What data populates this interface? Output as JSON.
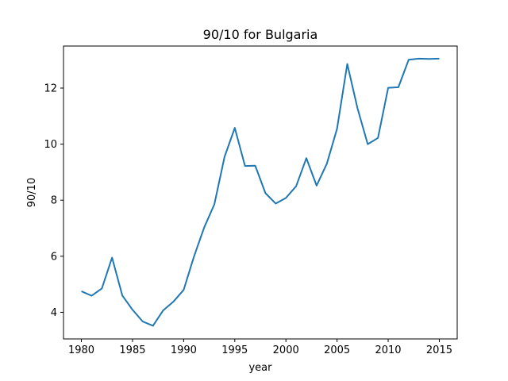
{
  "chart_data": {
    "type": "line",
    "title": "90/10 for Bulgaria",
    "xlabel": "year",
    "ylabel": "90/10",
    "xlim": [
      1978.25,
      2016.75
    ],
    "ylim": [
      3.05,
      13.5
    ],
    "xticks": [
      1980,
      1985,
      1990,
      1995,
      2000,
      2005,
      2010,
      2015
    ],
    "yticks": [
      4,
      6,
      8,
      10,
      12
    ],
    "grid": false,
    "line_color": "#1f77b4",
    "series": [
      {
        "x": [
          1980,
          1981,
          1982,
          1983,
          1984,
          1985,
          1986,
          1987,
          1988,
          1989,
          1990,
          1991,
          1992,
          1993,
          1994,
          1995,
          1996,
          1997,
          1998,
          1999,
          2000,
          2001,
          2002,
          2003,
          2004,
          2005,
          2006,
          2007,
          2008,
          2009,
          2010,
          2011,
          2012,
          2013,
          2014,
          2015
        ],
        "values": [
          4.75,
          4.59,
          4.85,
          5.95,
          4.6,
          4.09,
          3.67,
          3.52,
          4.07,
          4.38,
          4.8,
          5.98,
          7.02,
          7.85,
          9.55,
          10.58,
          9.22,
          9.23,
          8.25,
          7.88,
          8.08,
          8.5,
          9.5,
          8.52,
          9.3,
          10.55,
          12.86,
          11.28,
          10.0,
          10.22,
          12.01,
          12.03,
          13.01,
          13.05,
          13.04,
          13.05
        ]
      }
    ]
  }
}
